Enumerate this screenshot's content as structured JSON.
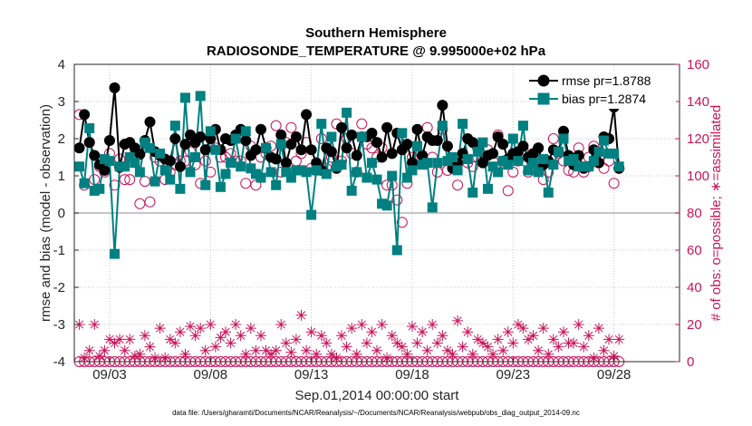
{
  "chart_data": {
    "type": "line",
    "title": "Southern Hemisphere",
    "subtitle": "RADIOSONDE_TEMPERATURE @ 9.995000e+02 hPa",
    "xlabel": "Sep.01,2014 00:00:00 start",
    "ylabel": "rmse and bias (model - observation)",
    "y2label": "# of obs: o=possible; ∗=assimilated",
    "footnote": "data file: /Users/gharamti/Documents/NCAR/Reanalysis/~/Documents/NCAR/Reanalysis/webpub/obs_diag_output_2014-09.nc",
    "ylim": [
      -4,
      4
    ],
    "y2lim": [
      0,
      160
    ],
    "xlim": [
      1.25,
      31.25
    ],
    "yticks": [
      "-4",
      "-3",
      "-2",
      "-1",
      "0",
      "1",
      "2",
      "3",
      "4"
    ],
    "y2ticks": [
      "0",
      "20",
      "40",
      "60",
      "80",
      "100",
      "120",
      "140",
      "160"
    ],
    "xticks": [
      {
        "label": "09/03",
        "value": 3.0
      },
      {
        "label": "09/08",
        "value": 8.0
      },
      {
        "label": "09/13",
        "value": 13.0
      },
      {
        "label": "09/18",
        "value": 18.0
      },
      {
        "label": "09/23",
        "value": 23.0
      },
      {
        "label": "09/28",
        "value": 28.0
      }
    ],
    "colors": {
      "rmse": "#000000",
      "bias": "#008080",
      "obs": "#c8145a",
      "zero": "#b4b4b4"
    },
    "legend": {
      "position": "top-right",
      "entries": [
        "rmse pr=1.8788",
        "bias pr=1.2874"
      ]
    },
    "x_start": 1.5,
    "x_step": 0.25,
    "series": [
      {
        "name": "rmse pr=1.8788",
        "axis": "left",
        "style": "line-marker",
        "values": [
          1.75,
          2.65,
          1.9,
          1.55,
          1.3,
          1.15,
          1.95,
          3.37,
          1.23,
          1.85,
          1.9,
          1.75,
          1.58,
          1.95,
          2.45,
          1.65,
          1.55,
          1.45,
          1.4,
          2.0,
          1.25,
          1.85,
          2.1,
          1.9,
          2.05,
          1.7,
          2.0,
          2.25,
          1.7,
          2.0,
          1.95,
          2.1,
          2.25,
          1.95,
          1.55,
          1.7,
          2.25,
          1.75,
          1.5,
          1.45,
          2.1,
          1.35,
          1.85,
          2.05,
          1.7,
          2.65,
          1.7,
          1.35,
          1.15,
          1.75,
          1.65,
          1.2,
          2.3,
          1.75,
          2.1,
          1.55,
          2.05,
          2.05,
          2.15,
          1.9,
          1.5,
          2.3,
          1.6,
          2.15,
          1.7,
          1.85,
          1.35,
          2.25,
          1.55,
          2.05,
          1.95,
          1.95,
          2.9,
          1.8,
          1.2,
          1.35,
          1.6,
          2.0,
          1.9,
          1.75,
          1.35,
          1.55,
          1.6,
          2.05,
          1.85,
          1.45,
          1.6,
          1.65,
          1.8,
          1.5,
          1.6,
          1.75,
          1.3,
          1.4,
          1.7,
          1.65,
          2.2,
          1.55,
          1.3,
          1.55,
          1.2,
          1.25,
          1.7,
          1.35,
          2.05,
          2.0,
          2.85,
          1.2
        ]
      },
      {
        "name": "bias pr=1.2874",
        "axis": "left",
        "style": "line-marker",
        "values": [
          1.25,
          0.8,
          2.28,
          0.6,
          0.65,
          1.45,
          1.4,
          -1.1,
          1.25,
          1.25,
          1.5,
          1.35,
          1.1,
          1.9,
          1.75,
          0.85,
          1.6,
          1.15,
          0.9,
          2.35,
          0.65,
          3.1,
          1.1,
          1.5,
          3.15,
          0.75,
          2.2,
          1.7,
          0.7,
          1.05,
          1.35,
          2.0,
          1.25,
          2.2,
          1.2,
          1.05,
          0.95,
          1.75,
          1.1,
          0.75,
          1.85,
          1.1,
          0.95,
          1.15,
          1.15,
          1.1,
          -0.05,
          1.15,
          2.4,
          1.05,
          2.05,
          1.25,
          1.3,
          2.7,
          0.6,
          1.1,
          2.05,
          0.95,
          1.35,
          0.9,
          0.25,
          0.2,
          1.0,
          -1.0,
          2.15,
          0.95,
          1.15,
          1.8,
          1.3,
          1.35,
          0.15,
          1.35,
          2.35,
          1.4,
          1.5,
          1.15,
          2.4,
          1.45,
          0.55,
          1.65,
          1.9,
          0.65,
          1.25,
          1.1,
          1.4,
          1.3,
          2.0,
          1.4,
          2.35,
          1.15,
          1.35,
          1.1,
          1.45,
          0.55,
          1.3,
          1.65,
          2.0,
          1.4,
          1.45,
          1.25,
          1.25,
          1.25,
          1.4,
          1.65,
          1.95,
          1.6,
          1.6,
          1.25
        ]
      },
      {
        "name": "possible",
        "axis": "right",
        "style": "markers-o",
        "values": [
          133,
          95,
          118,
          98,
          105,
          102,
          112,
          95,
          109,
          98,
          98,
          112,
          85,
          97,
          86,
          110,
          108,
          98,
          102,
          106,
          108,
          108,
          113,
          106,
          96,
          108,
          102,
          115,
          110,
          110,
          112,
          108,
          108,
          96,
          116,
          95,
          110,
          112,
          116,
          127,
          102,
          118,
          126,
          108,
          112,
          118,
          104,
          103,
          120,
          104,
          110,
          128,
          108,
          120,
          112,
          102,
          128,
          117,
          115,
          110,
          115,
          95,
          95,
          87,
          75,
          96,
          110,
          108,
          107,
          126,
          110,
          102,
          125,
          103,
          106,
          95,
          112,
          107,
          105,
          110,
          108,
          114,
          108,
          122,
          108,
          92,
          102,
          108,
          114,
          102,
          110,
          115,
          98,
          102,
          120,
          112,
          108,
          103,
          102,
          115,
          102,
          110,
          116,
          110,
          104,
          108,
          96,
          104
        ]
      },
      {
        "name": "assimilated",
        "axis": "right",
        "style": "markers-star",
        "values": [
          20,
          2,
          6,
          20,
          3,
          6,
          12,
          10,
          12,
          6,
          12,
          3,
          4,
          14,
          8,
          2,
          18,
          2,
          12,
          10,
          16,
          4,
          19,
          14,
          18,
          6,
          20,
          8,
          13,
          16,
          10,
          20,
          14,
          4,
          18,
          6,
          14,
          6,
          4,
          6,
          20,
          10,
          5,
          12,
          25,
          6,
          16,
          4,
          14,
          10,
          4,
          2,
          14,
          8,
          18,
          4,
          20,
          10,
          16,
          6,
          20,
          2,
          14,
          10,
          8,
          4,
          19,
          10,
          16,
          6,
          20,
          10,
          14,
          6,
          4,
          22,
          8,
          16,
          4,
          12,
          10,
          8,
          4,
          12,
          6,
          16,
          10,
          20,
          18,
          12,
          14,
          6,
          18,
          4,
          12,
          8,
          16,
          10,
          10,
          20,
          8,
          14,
          2,
          18,
          6,
          12,
          3,
          12
        ]
      }
    ]
  }
}
